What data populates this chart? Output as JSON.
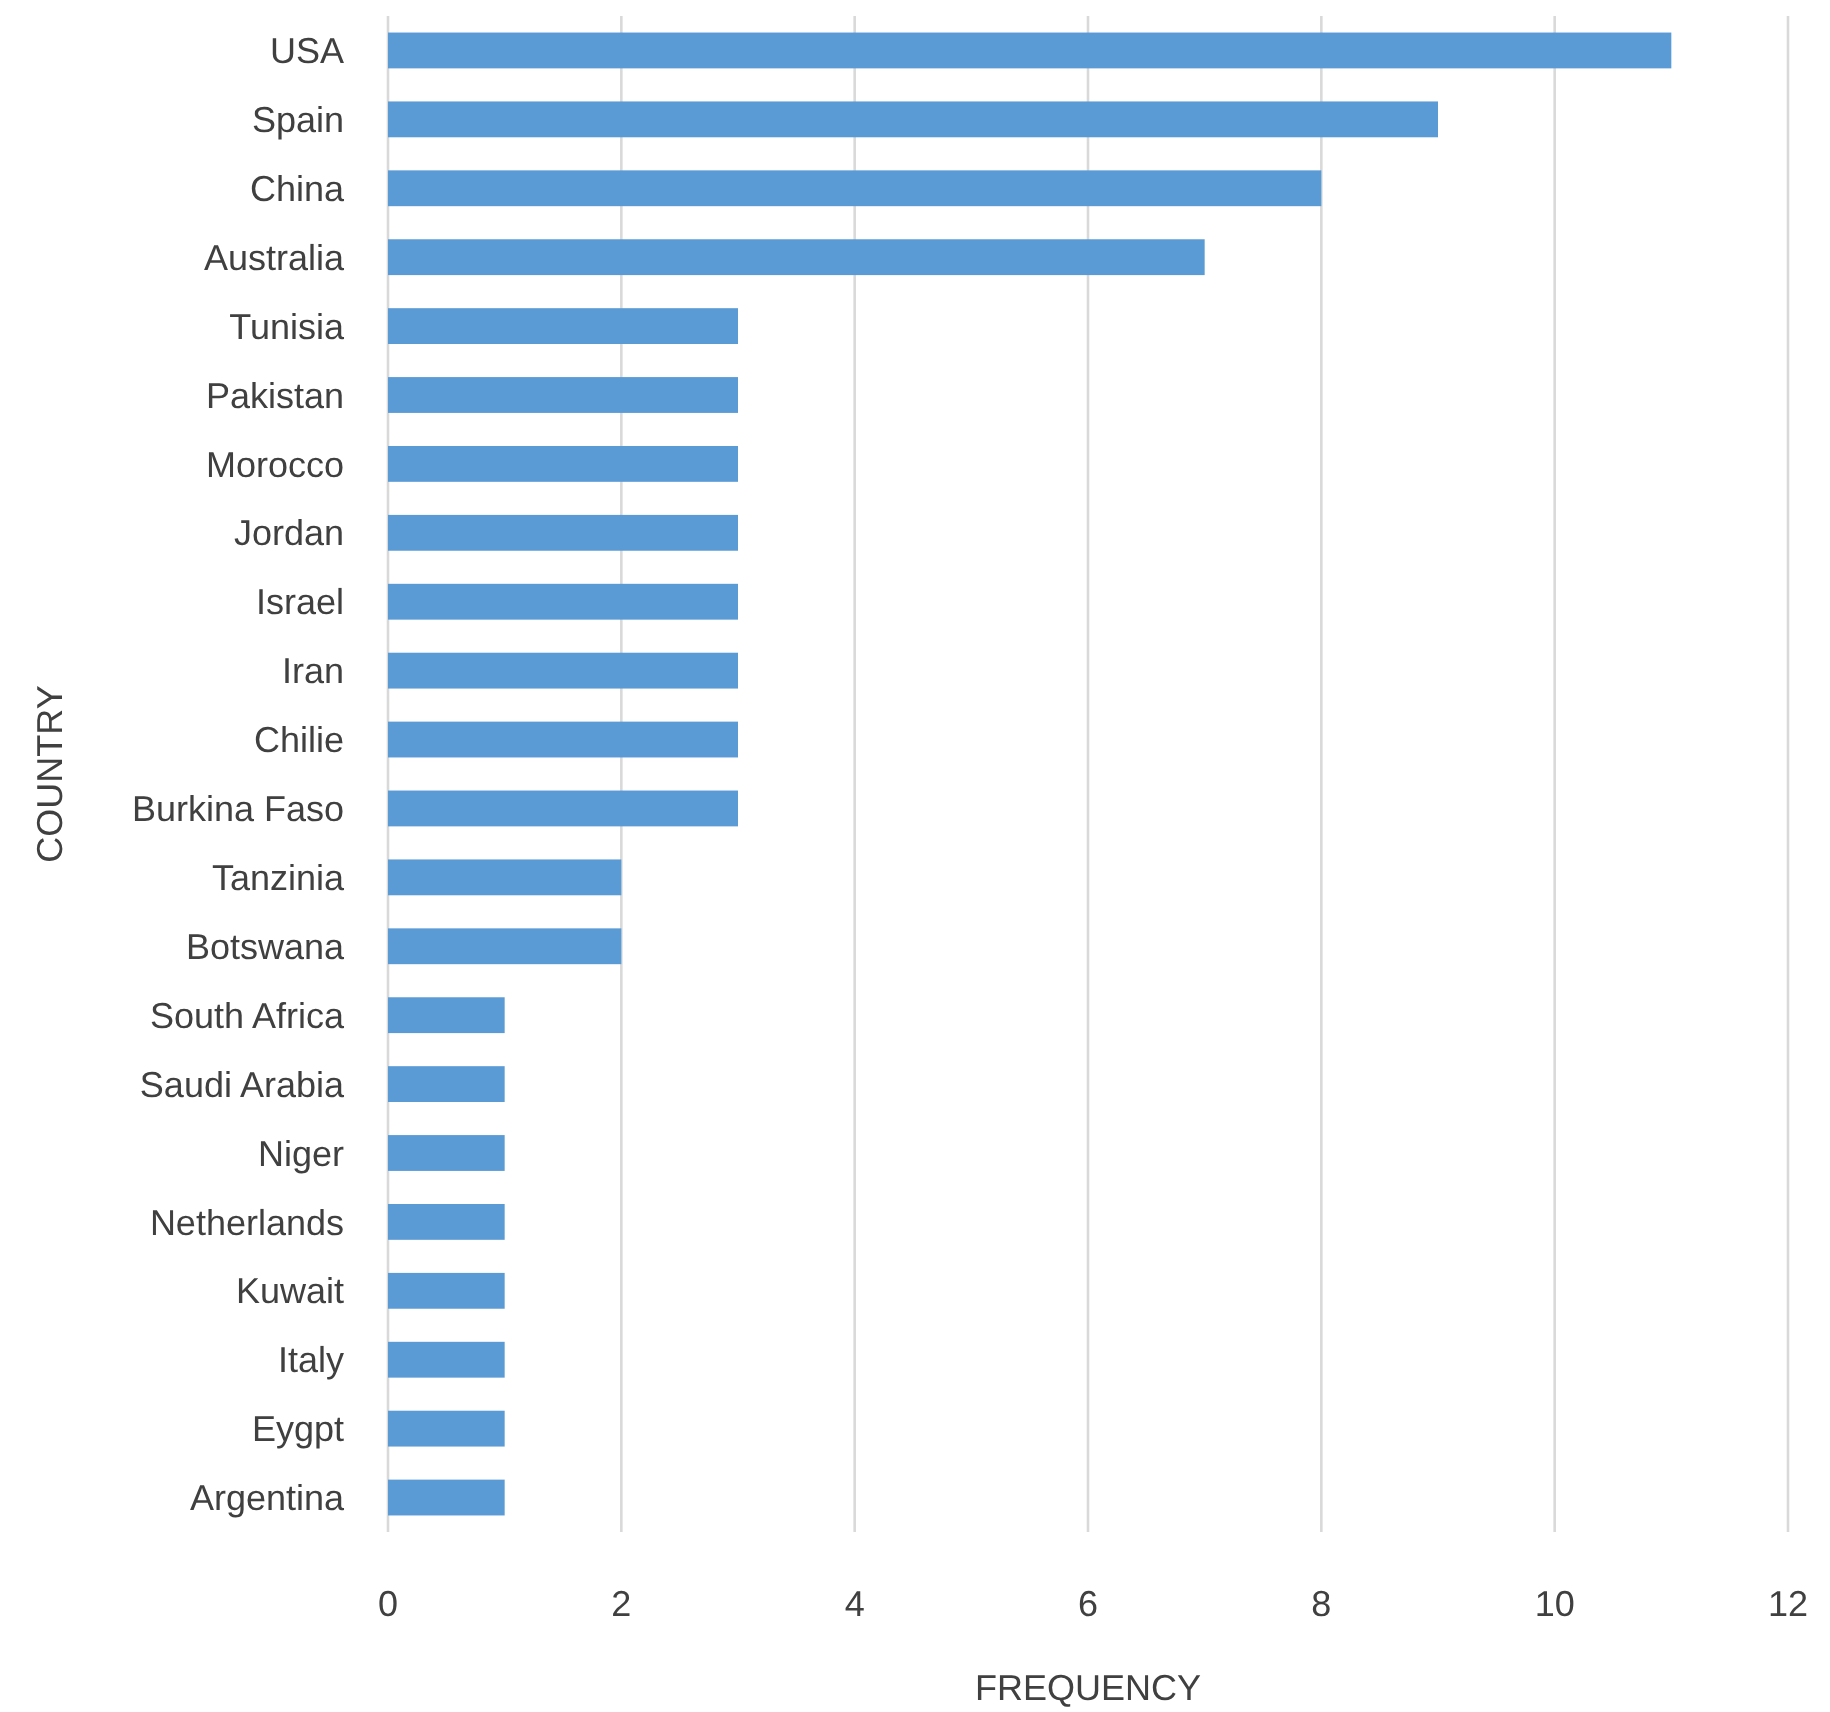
{
  "chart_data": {
    "type": "bar",
    "orientation": "horizontal",
    "xlabel": "FREQUENCY",
    "ylabel": "COUNTRY",
    "categories": [
      "USA",
      "Spain",
      "China",
      "Australia",
      "Tunisia",
      "Pakistan",
      "Morocco",
      "Jordan",
      "Israel",
      "Iran",
      "Chilie",
      "Burkina Faso",
      "Tanzinia",
      "Botswana",
      "South Africa",
      "Saudi Arabia",
      "Niger",
      "Netherlands",
      "Kuwait",
      "Italy",
      "Eygpt",
      "Argentina"
    ],
    "values": [
      11,
      9,
      8,
      7,
      3,
      3,
      3,
      3,
      3,
      3,
      3,
      3,
      2,
      2,
      1,
      1,
      1,
      1,
      1,
      1,
      1,
      1
    ],
    "color": "#5b9bd5",
    "xlim": [
      0,
      12
    ],
    "xticks": [
      0,
      2,
      4,
      6,
      8,
      10,
      12
    ],
    "grid": "x"
  }
}
